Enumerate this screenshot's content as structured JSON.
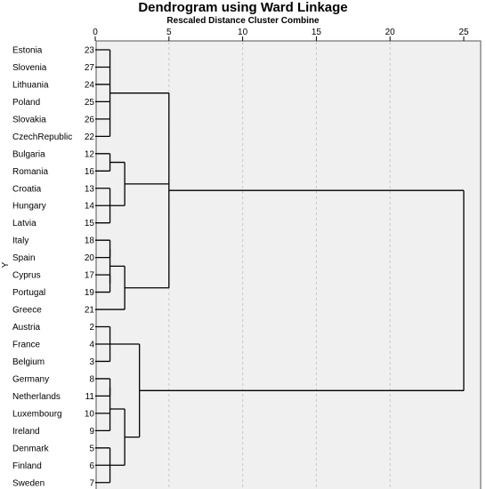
{
  "chart_data": {
    "type": "dendrogram",
    "title": "Dendrogram using Ward Linkage",
    "subtitle": "Rescaled Distance Cluster Combine",
    "ylabel": "Y",
    "xlim": [
      0,
      25
    ],
    "xticks": [
      0,
      5,
      10,
      15,
      20,
      25
    ],
    "leaves": [
      {
        "label": "Estonia",
        "id": 23
      },
      {
        "label": "Slovenia",
        "id": 27
      },
      {
        "label": "Lithuania",
        "id": 24
      },
      {
        "label": "Poland",
        "id": 25
      },
      {
        "label": "Slovakia",
        "id": 26
      },
      {
        "label": "CzechRepublic",
        "id": 22
      },
      {
        "label": "Bulgaria",
        "id": 12
      },
      {
        "label": "Romania",
        "id": 16
      },
      {
        "label": "Croatia",
        "id": 13
      },
      {
        "label": "Hungary",
        "id": 14
      },
      {
        "label": "Latvia",
        "id": 15
      },
      {
        "label": "Italy",
        "id": 18
      },
      {
        "label": "Spain",
        "id": 20
      },
      {
        "label": "Cyprus",
        "id": 17
      },
      {
        "label": "Portugal",
        "id": 19
      },
      {
        "label": "Greece",
        "id": 21
      },
      {
        "label": "Austria",
        "id": 2
      },
      {
        "label": "France",
        "id": 4
      },
      {
        "label": "Belgium",
        "id": 3
      },
      {
        "label": "Germany",
        "id": 8
      },
      {
        "label": "Netherlands",
        "id": 11
      },
      {
        "label": "Luxembourg",
        "id": 10
      },
      {
        "label": "Ireland",
        "id": 9
      },
      {
        "label": "Denmark",
        "id": 5
      },
      {
        "label": "Finland",
        "id": 6
      },
      {
        "label": "Sweden",
        "id": 7
      }
    ],
    "merges": [
      {
        "height": 1.0,
        "children": [
          [
            "leaf",
            0
          ],
          [
            "leaf",
            1
          ],
          [
            "leaf",
            2
          ],
          [
            "leaf",
            3
          ],
          [
            "leaf",
            4
          ],
          [
            "leaf",
            5
          ]
        ]
      },
      {
        "height": 1.0,
        "children": [
          [
            "leaf",
            6
          ],
          [
            "leaf",
            7
          ]
        ]
      },
      {
        "height": 1.0,
        "children": [
          [
            "leaf",
            8
          ],
          [
            "leaf",
            9
          ],
          [
            "leaf",
            10
          ]
        ]
      },
      {
        "height": 2.0,
        "children": [
          [
            "node",
            1
          ],
          [
            "node",
            2
          ]
        ]
      },
      {
        "height": 1.0,
        "children": [
          [
            "leaf",
            11
          ],
          [
            "leaf",
            12
          ]
        ]
      },
      {
        "height": 1.0,
        "children": [
          [
            "leaf",
            13
          ],
          [
            "leaf",
            14
          ]
        ]
      },
      {
        "height": 1.0,
        "children": [
          [
            "node",
            4
          ],
          [
            "node",
            5
          ]
        ]
      },
      {
        "height": 2.0,
        "children": [
          [
            "node",
            6
          ],
          [
            "leaf",
            15
          ]
        ]
      },
      {
        "height": 5.0,
        "children": [
          [
            "node",
            0
          ],
          [
            "node",
            3
          ],
          [
            "node",
            7
          ]
        ]
      },
      {
        "height": 1.0,
        "children": [
          [
            "leaf",
            16
          ],
          [
            "leaf",
            17
          ],
          [
            "leaf",
            18
          ]
        ]
      },
      {
        "height": 1.0,
        "children": [
          [
            "leaf",
            19
          ],
          [
            "leaf",
            20
          ]
        ]
      },
      {
        "height": 1.0,
        "children": [
          [
            "node",
            10
          ],
          [
            "leaf",
            21
          ],
          [
            "leaf",
            22
          ]
        ]
      },
      {
        "height": 1.0,
        "children": [
          [
            "leaf",
            23
          ],
          [
            "leaf",
            24
          ],
          [
            "leaf",
            25
          ]
        ]
      },
      {
        "height": 2.0,
        "children": [
          [
            "node",
            11
          ],
          [
            "node",
            12
          ]
        ]
      },
      {
        "height": 3.0,
        "children": [
          [
            "node",
            9
          ],
          [
            "node",
            13
          ]
        ]
      },
      {
        "height": 25.0,
        "children": [
          [
            "node",
            8
          ],
          [
            "node",
            14
          ]
        ]
      }
    ],
    "grid": true,
    "colors": {
      "background": "#f0f0f0",
      "line": "#000000",
      "grid": "#c8c8c8"
    }
  }
}
